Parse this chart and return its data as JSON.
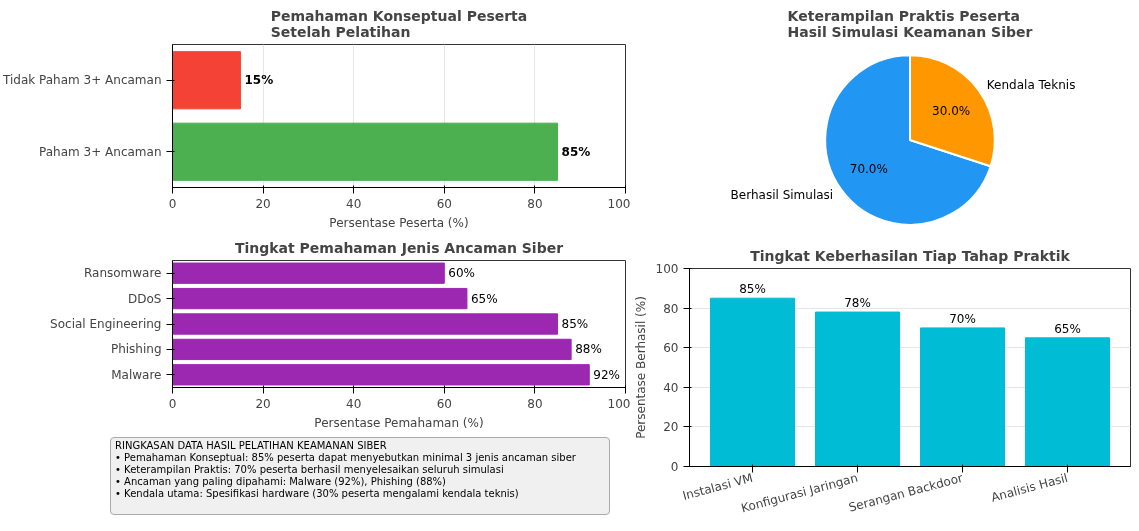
{
  "chart_data": [
    {
      "type": "bar",
      "orientation": "horizontal",
      "title": "Pemahaman Konseptual Peserta\nSetelah Pelatihan",
      "xlabel": "Persentase Peserta (%)",
      "categories": [
        "Tidak Paham 3+ Ancaman",
        "Paham 3+ Ancaman"
      ],
      "values": [
        15,
        85
      ],
      "colors": [
        "#f44336",
        "#4caf50"
      ],
      "value_labels": [
        "15%",
        "85%"
      ],
      "xlim": [
        0,
        100
      ],
      "xticks": [
        0,
        20,
        40,
        60,
        80,
        100
      ],
      "grid": "x"
    },
    {
      "type": "bar",
      "orientation": "horizontal",
      "title": "Tingkat Pemahaman Jenis Ancaman Siber",
      "xlabel": "Persentase Pemahaman (%)",
      "categories": [
        "Ransomware",
        "DDoS",
        "Social Engineering",
        "Phishing",
        "Malware"
      ],
      "values": [
        60,
        65,
        85,
        88,
        92
      ],
      "color": "#9c27b0",
      "value_labels": [
        "60%",
        "65%",
        "85%",
        "88%",
        "92%"
      ],
      "xlim": [
        0,
        100
      ],
      "xticks": [
        0,
        20,
        40,
        60,
        80,
        100
      ]
    },
    {
      "type": "pie",
      "title": "Keterampilan Praktis Peserta\nHasil Simulasi Keamanan Siber",
      "categories": [
        "Berhasil Simulasi",
        "Kendala Teknis"
      ],
      "values": [
        70,
        30
      ],
      "colors": [
        "#2196f3",
        "#ff9800"
      ],
      "value_labels": [
        "70.0%",
        "30.0%"
      ]
    },
    {
      "type": "bar",
      "title": "Tingkat Keberhasilan Tiap Tahap Praktik",
      "ylabel": "Persentase Berhasil (%)",
      "categories": [
        "Instalasi VM",
        "Konfigurasi Jaringan",
        "Serangan Backdoor",
        "Analisis Hasil"
      ],
      "values": [
        85,
        78,
        70,
        65
      ],
      "color": "#00bcd4",
      "value_labels": [
        "85%",
        "78%",
        "70%",
        "65%"
      ],
      "ylim": [
        0,
        100
      ],
      "yticks": [
        0,
        20,
        40,
        60,
        80,
        100
      ],
      "grid": "y"
    },
    {
      "type": "other",
      "title": "RINGKASAN DATA HASIL PELATIHAN KEAMANAN SIBER",
      "annotations": [
        "• Pemahaman Konseptual: 85% peserta dapat menyebutkan minimal 3 jenis ancaman siber",
        "• Keterampilan Praktis: 70% peserta berhasil menyelesaikan seluruh simulasi",
        "• Ancaman yang paling dipahami: Malware (92%), Phishing (88%)",
        "• Kendala utama: Spesifikasi hardware (30% peserta mengalami kendala teknis)"
      ]
    }
  ]
}
